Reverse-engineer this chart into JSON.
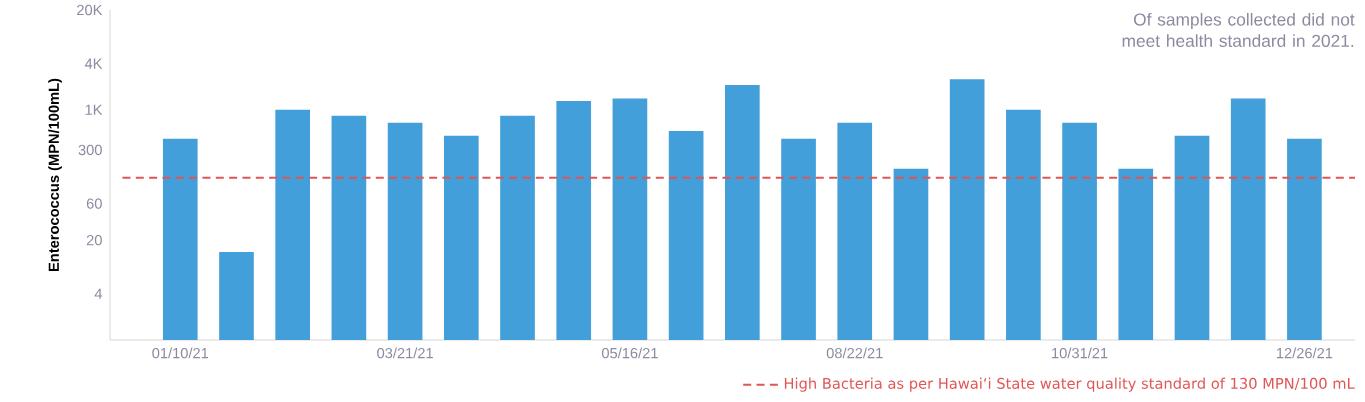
{
  "chart_data": {
    "type": "bar",
    "ylabel": "Enterococcus (MPN/100mL)",
    "categories": [
      "01/10/21",
      null,
      null,
      null,
      "03/21/21",
      null,
      null,
      null,
      "05/16/21",
      null,
      null,
      null,
      "08/22/21",
      null,
      null,
      null,
      "10/31/21",
      null,
      null,
      null,
      "12/26/21"
    ],
    "values": [
      420,
      14,
      1000,
      840,
      680,
      460,
      840,
      1300,
      1400,
      530,
      2100,
      420,
      680,
      170,
      2500,
      1000,
      680,
      170,
      460,
      1400,
      420
    ],
    "color": "#439fd9",
    "log": "y",
    "ylim": [
      1,
      20000
    ],
    "yticks": [
      4,
      20,
      60,
      300,
      {
        "value": 1000,
        "label": "1K"
      },
      {
        "value": 4000,
        "label": "4K"
      },
      {
        "value": 20000,
        "label": "20K"
      }
    ],
    "grid": false,
    "ref_lines": [
      {
        "axis": "y",
        "value": 130,
        "label": "High Bacteria as per Hawaiʻi State water quality standard of 130 MPN/100 mL",
        "color": "#e05555",
        "line_style": "dashed"
      }
    ],
    "annotations": [
      "Of samples collected did not meet health standard in 2021."
    ]
  }
}
